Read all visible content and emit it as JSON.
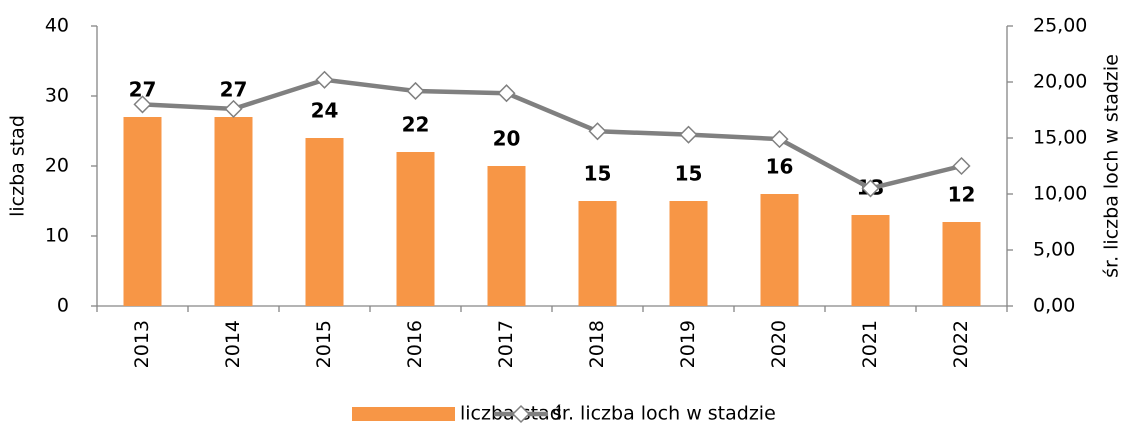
{
  "chart_data": {
    "type": "bar_line",
    "categories": [
      "2013",
      "2014",
      "2015",
      "2016",
      "2017",
      "2018",
      "2019",
      "2020",
      "2021",
      "2022"
    ],
    "series": [
      {
        "name": "liczba stad",
        "type": "bar",
        "color": "#f79646",
        "values": [
          27,
          27,
          24,
          22,
          20,
          15,
          15,
          16,
          13,
          12
        ]
      },
      {
        "name": "śr. liczba loch w stadzie",
        "type": "line",
        "axis": "y2",
        "color": "#808080",
        "values": [
          18.0,
          17.6,
          20.2,
          19.2,
          19.0,
          15.6,
          15.3,
          14.9,
          10.5,
          12.5
        ]
      }
    ],
    "ylabel": "liczba stad",
    "y2label": "śr. liczba loch w stadzie",
    "ylim": [
      0,
      40
    ],
    "yticks": [
      0,
      10,
      20,
      30,
      40
    ],
    "y2lim": [
      0,
      25
    ],
    "y2ticks": [
      {
        "value": 0,
        "label": "0,00"
      },
      {
        "value": 5,
        "label": "5,00"
      },
      {
        "value": 10,
        "label": "10,00"
      },
      {
        "value": 15,
        "label": "15,00"
      },
      {
        "value": 20,
        "label": "20,00"
      },
      {
        "value": 25,
        "label": "25,00"
      }
    ],
    "grid": false,
    "legend": "bottom"
  }
}
